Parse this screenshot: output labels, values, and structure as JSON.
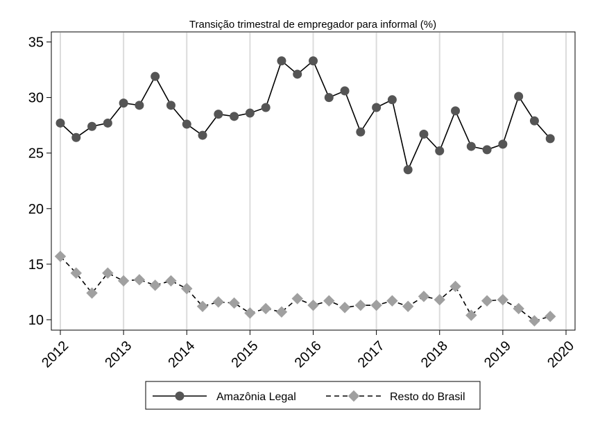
{
  "chart_data": {
    "type": "line",
    "title": "Transição trimestral de empregador para informal (%)",
    "xlabel": "",
    "ylabel": "",
    "xlim": [
      2012,
      2020
    ],
    "ylim": [
      9,
      36
    ],
    "x_ticks": [
      "2012",
      "2013",
      "2014",
      "2015",
      "2016",
      "2017",
      "2018",
      "2019",
      "2020"
    ],
    "y_ticks": [
      "10",
      "15",
      "20",
      "25",
      "30",
      "35"
    ],
    "grid": "vertical",
    "legend_position": "bottom",
    "x": [
      2012.0,
      2012.25,
      2012.5,
      2012.75,
      2013.0,
      2013.25,
      2013.5,
      2013.75,
      2014.0,
      2014.25,
      2014.5,
      2014.75,
      2015.0,
      2015.25,
      2015.5,
      2015.75,
      2016.0,
      2016.25,
      2016.5,
      2016.75,
      2017.0,
      2017.25,
      2017.5,
      2017.75,
      2018.0,
      2018.25,
      2018.5,
      2018.75,
      2019.0,
      2019.25,
      2019.5,
      2019.75
    ],
    "series": [
      {
        "name": "Amazônia Legal",
        "style": "solid",
        "marker": "circle",
        "color": "#555555",
        "values": [
          27.7,
          26.4,
          27.4,
          27.7,
          29.5,
          29.3,
          31.9,
          29.3,
          27.6,
          26.6,
          28.5,
          28.3,
          28.6,
          29.1,
          33.3,
          32.1,
          33.3,
          30.0,
          30.6,
          26.9,
          29.1,
          29.8,
          23.5,
          26.7,
          25.2,
          28.8,
          25.6,
          25.3,
          25.8,
          30.1,
          27.9,
          26.3
        ]
      },
      {
        "name": "Resto do Brasil",
        "style": "dashed",
        "marker": "diamond",
        "color": "#a0a0a0",
        "values": [
          15.7,
          14.2,
          12.4,
          14.2,
          13.5,
          13.6,
          13.1,
          13.5,
          12.8,
          11.2,
          11.6,
          11.5,
          10.6,
          11.0,
          10.7,
          11.9,
          11.3,
          11.7,
          11.1,
          11.3,
          11.3,
          11.7,
          11.2,
          12.1,
          11.8,
          13.0,
          10.4,
          11.7,
          11.8,
          11.0,
          9.9,
          10.3
        ]
      }
    ]
  }
}
